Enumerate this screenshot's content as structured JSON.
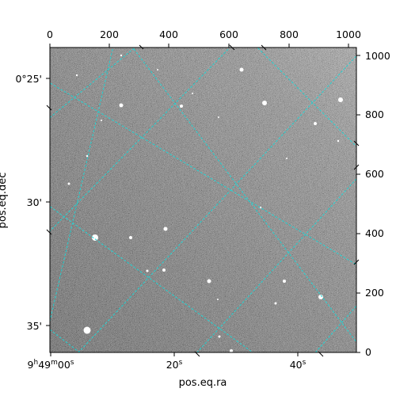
{
  "x_label": "pos.eq.ra",
  "y_label": "pos.eq.dec",
  "pixel_axis_top_ticks": [
    "0",
    "200",
    "400",
    "600",
    "800",
    "1000"
  ],
  "pixel_axis_right_ticks": [
    "0",
    "200",
    "400",
    "600",
    "800",
    "1000"
  ],
  "ra_ticks": [
    {
      "label": "9h49m00s",
      "main": "9",
      "sup1": "h",
      "mid": "49",
      "sup2": "m",
      "end": "00",
      "sup3": "s"
    },
    {
      "label": "20s",
      "main": "20",
      "sup3": "s"
    },
    {
      "label": "40s",
      "main": "40",
      "sup3": "s"
    }
  ],
  "dec_ticks": [
    "0°25'",
    "30'",
    "35'"
  ],
  "colors": {
    "grid": "#22d3d3",
    "frame": "#000000",
    "background": "#ffffff"
  },
  "image": {
    "cmap": "grayscale",
    "noise": true
  }
}
